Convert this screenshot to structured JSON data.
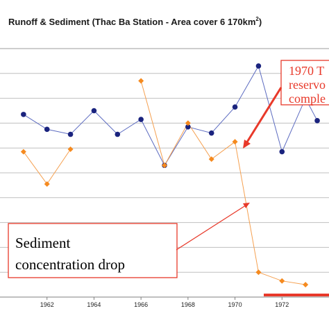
{
  "chart_data": {
    "type": "line",
    "title_main": "Runoff & Sediment (Thac Ba Station - Area cover 6 170km",
    "title_sup": "2",
    "title_end": ")",
    "xlabel": "",
    "ylabel": "",
    "x_ticks": [
      "1962",
      "1964",
      "1966",
      "1968",
      "1970",
      "1972"
    ],
    "x_range": [
      1960,
      1974
    ],
    "grid": true,
    "series": [
      {
        "key": "blue",
        "color": "#1a237e",
        "line_color": "#5c6bc0",
        "marker": "circle",
        "segments": [
          [
            [
              1961,
              3.35
            ],
            [
              1962,
              2.75
            ],
            [
              1963,
              2.55
            ],
            [
              1964,
              3.5
            ],
            [
              1965,
              2.55
            ],
            [
              1966,
              3.15
            ],
            [
              1967,
              1.3
            ],
            [
              1968,
              2.85
            ],
            [
              1969,
              2.6
            ],
            [
              1970,
              3.65
            ],
            [
              1971,
              5.3
            ],
            [
              1972,
              1.85
            ],
            [
              1973,
              4.0
            ],
            [
              1973.5,
              3.1
            ]
          ]
        ]
      },
      {
        "key": "orange",
        "color": "#f58a1f",
        "line_color": "#f5a050",
        "marker": "diamond",
        "segments": [
          [
            [
              1961,
              1.85
            ],
            [
              1962,
              0.55
            ],
            [
              1963,
              1.95
            ]
          ],
          [
            [
              1966,
              4.7
            ],
            [
              1967,
              1.3
            ],
            [
              1968,
              3.0
            ],
            [
              1969,
              1.55
            ],
            [
              1970,
              2.25
            ],
            [
              1971,
              -3.0
            ],
            [
              1972,
              -3.35
            ],
            [
              1973,
              -3.5
            ]
          ]
        ]
      }
    ],
    "annotations": {
      "reservoir_lines": [
        "1970 T",
        "reservo",
        "comple"
      ],
      "sediment_lines": [
        "Sediment",
        "concentration drop"
      ]
    },
    "colors": {
      "annotation_red": "#e8392a",
      "gridline": "#bfbfbf"
    }
  }
}
